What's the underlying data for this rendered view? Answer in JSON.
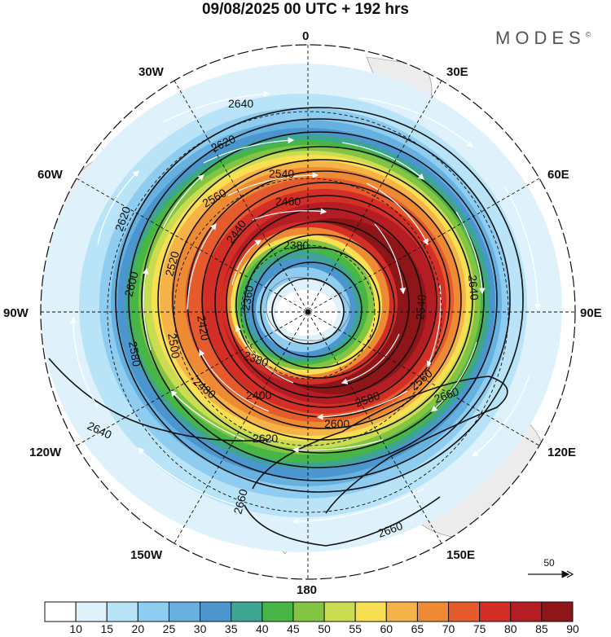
{
  "title": "09/08/2025  00 UTC  + 192 hrs",
  "brand": "MODES",
  "brand_mark": "©",
  "map_labels": {
    "lon_0": "0",
    "lon_30e": "30E",
    "lon_60e": "60E",
    "lon_90e": "90E",
    "lon_120e": "120E",
    "lon_150e": "150E",
    "lon_180": "180",
    "lon_150w": "150W",
    "lon_120w": "120W",
    "lon_90w": "90W",
    "lon_60w": "60W",
    "lon_30w": "30W"
  },
  "contour_labels": [
    "2640",
    "2620",
    "2620",
    "2600",
    "2580",
    "2560",
    "2540",
    "2520",
    "2500",
    "2480",
    "2460",
    "2440",
    "2420",
    "2400",
    "2380",
    "2380",
    "2360",
    "2540",
    "2560",
    "2580",
    "2600",
    "2620",
    "2640",
    "2640",
    "2660",
    "2660",
    "2660"
  ],
  "vector_reference": "50",
  "colorbar": {
    "ticks": [
      "10",
      "15",
      "20",
      "25",
      "30",
      "35",
      "40",
      "45",
      "50",
      "55",
      "60",
      "65",
      "70",
      "75",
      "80",
      "85",
      "90"
    ],
    "colors": [
      "#ffffff",
      "#dff2fc",
      "#b9e4f8",
      "#8ecdf0",
      "#67b1e0",
      "#4b96cf",
      "#3da592",
      "#48b547",
      "#83c443",
      "#c9dc52",
      "#f9e053",
      "#f6b347",
      "#ef8a34",
      "#e65b2b",
      "#d42f27",
      "#b51d24",
      "#8e1518"
    ]
  }
}
